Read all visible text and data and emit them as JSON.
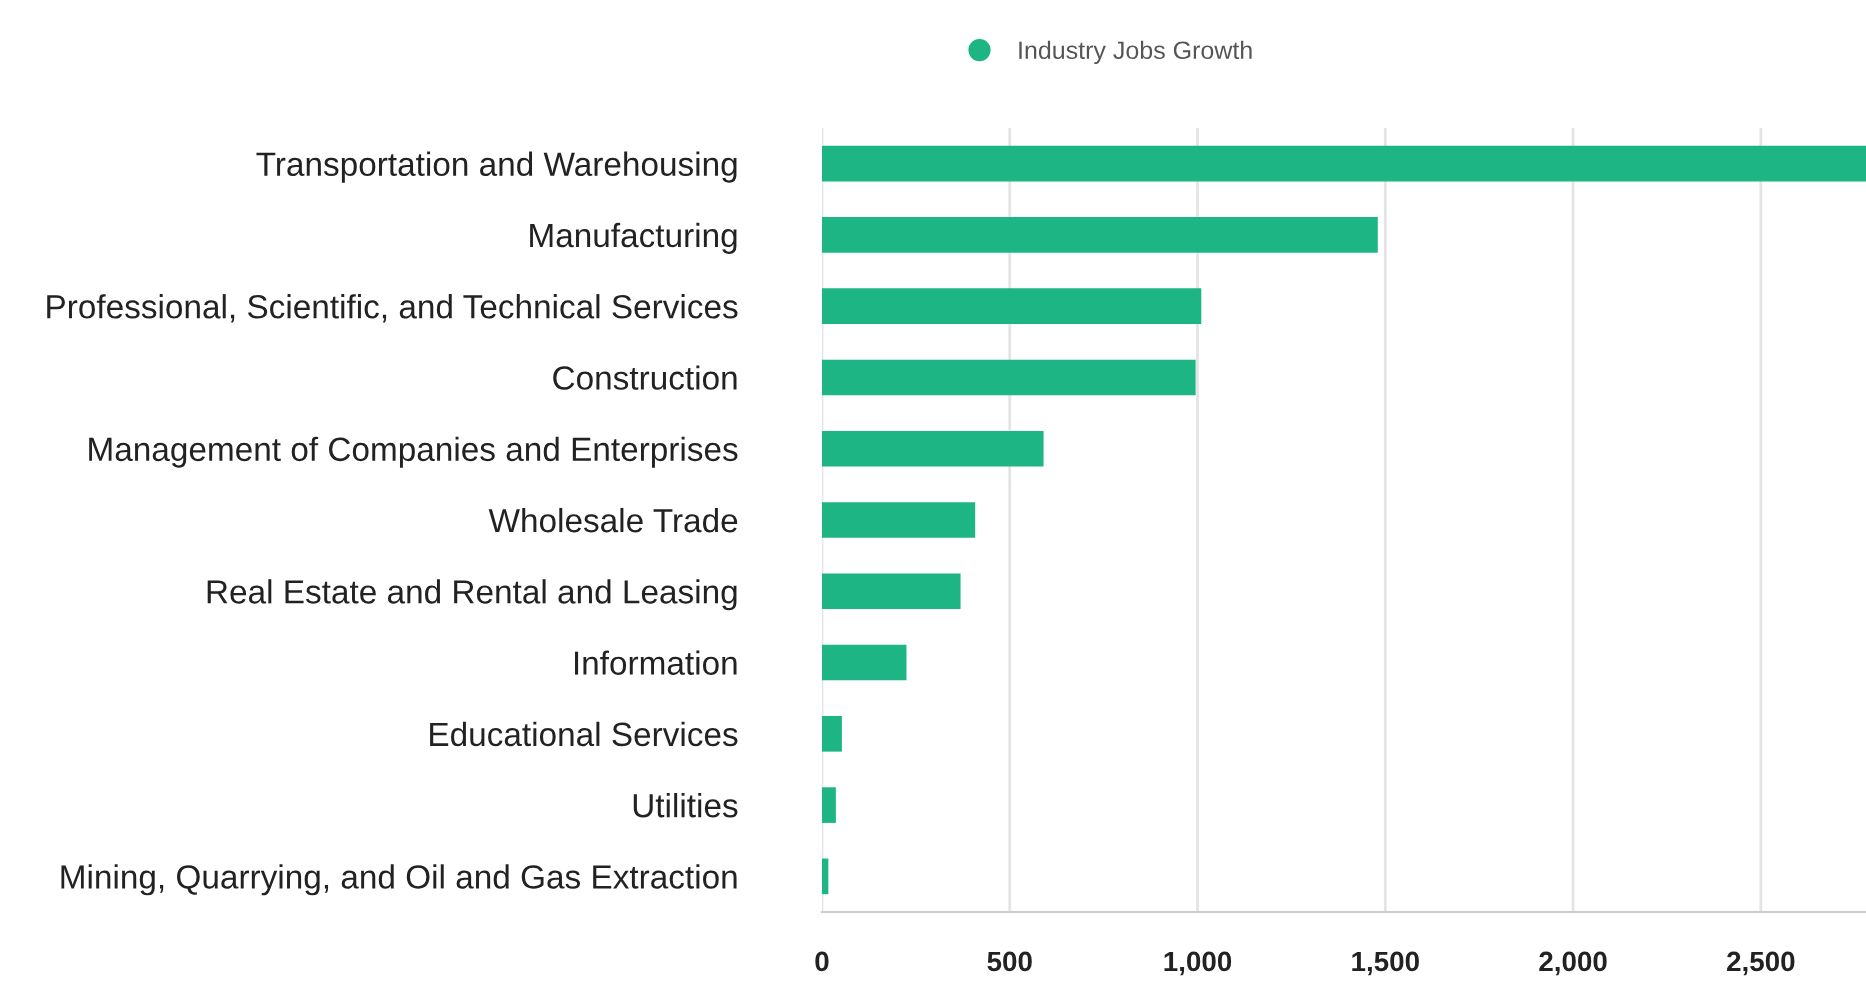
{
  "chart_data": {
    "type": "bar",
    "orientation": "horizontal",
    "categories": [
      "Transportation and Warehousing",
      "Manufacturing",
      "Professional, Scientific, and Technical Services",
      "Construction",
      "Management of Companies and Enterprises",
      "Wholesale Trade",
      "Real Estate and Rental and Leasing",
      "Information",
      "Educational Services",
      "Utilities",
      "Mining, Quarrying, and Oil and Gas Extraction"
    ],
    "series": [
      {
        "name": "Industry Jobs Growth",
        "color": "#1db584",
        "values": [
          2780,
          1480,
          1010,
          995,
          590,
          408,
          369,
          225,
          53,
          37,
          17
        ]
      }
    ],
    "xlim": [
      0,
      2780
    ],
    "xticks": [
      {
        "value": 0,
        "label": "0"
      },
      {
        "value": 500,
        "label": "500"
      },
      {
        "value": 1000,
        "label": "1,000"
      },
      {
        "value": 1500,
        "label": "1,500"
      },
      {
        "value": 2000,
        "label": "2,000"
      },
      {
        "value": 2500,
        "label": "2,500"
      }
    ],
    "grid": "x",
    "legend": "top"
  }
}
